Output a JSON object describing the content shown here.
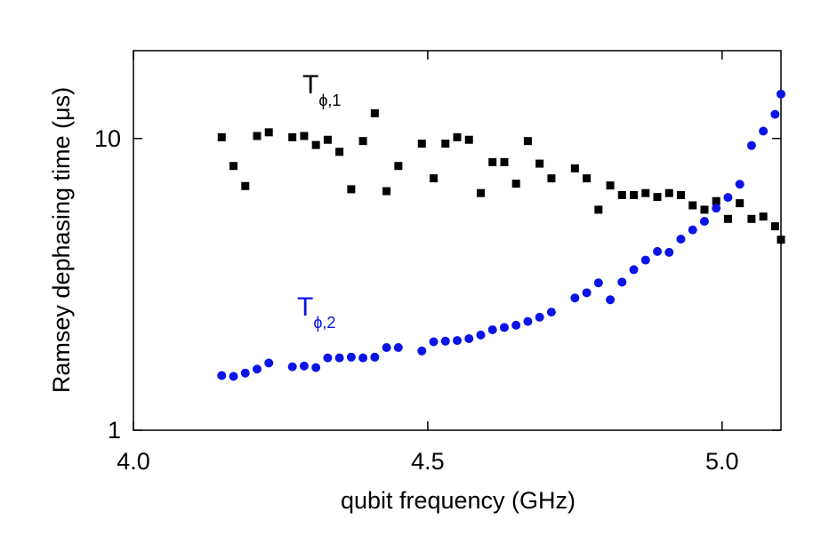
{
  "chart_data": {
    "type": "scatter",
    "x_label": "qubit frequency (GHz)",
    "y_label": "Ramsey dephasing time (μs)",
    "xlim": [
      4.0,
      5.1
    ],
    "ylim": [
      1,
      20
    ],
    "log_y": true,
    "xticks": [
      {
        "value": 4.0,
        "label": "4.0"
      },
      4.5,
      {
        "value": 5.0,
        "label": "5.0"
      }
    ],
    "yticks": [
      1,
      10
    ],
    "series": [
      {
        "color": "#000000",
        "marker": "square",
        "x": [
          4.15,
          4.17,
          4.19,
          4.21,
          4.23,
          4.27,
          4.29,
          4.31,
          4.33,
          4.35,
          4.37,
          4.39,
          4.41,
          4.43,
          4.45,
          4.49,
          4.51,
          4.53,
          4.55,
          4.57,
          4.59,
          4.61,
          4.63,
          4.65,
          4.67,
          4.69,
          4.71,
          4.75,
          4.77,
          4.79,
          4.81,
          4.83,
          4.85,
          4.87,
          4.89,
          4.91,
          4.93,
          4.95,
          4.97,
          4.99,
          5.01,
          5.03,
          5.05,
          5.07,
          5.09,
          5.1
        ],
        "values": [
          10.1,
          8.05,
          6.87,
          10.2,
          10.5,
          10.1,
          10.2,
          9.5,
          9.9,
          9.0,
          6.7,
          9.8,
          12.2,
          6.6,
          8.05,
          9.6,
          7.3,
          9.6,
          10.1,
          9.9,
          6.5,
          8.3,
          8.3,
          7.0,
          9.8,
          8.2,
          7.3,
          7.9,
          7.3,
          5.7,
          6.9,
          6.4,
          6.4,
          6.5,
          6.3,
          6.5,
          6.4,
          5.9,
          5.7,
          6.1,
          5.3,
          6.0,
          5.3,
          5.4,
          5.0,
          4.5
        ]
      },
      {
        "color": "#0a14e6",
        "marker": "circle",
        "x": [
          4.15,
          4.17,
          4.19,
          4.21,
          4.23,
          4.27,
          4.29,
          4.31,
          4.33,
          4.35,
          4.37,
          4.39,
          4.41,
          4.43,
          4.45,
          4.49,
          4.51,
          4.53,
          4.55,
          4.57,
          4.59,
          4.61,
          4.63,
          4.65,
          4.67,
          4.69,
          4.71,
          4.75,
          4.77,
          4.79,
          4.81,
          4.83,
          4.85,
          4.87,
          4.89,
          4.91,
          4.93,
          4.95,
          4.97,
          4.99,
          5.01,
          5.03,
          5.05,
          5.07,
          5.09,
          5.1
        ],
        "values": [
          1.54,
          1.53,
          1.57,
          1.62,
          1.7,
          1.65,
          1.66,
          1.64,
          1.77,
          1.77,
          1.78,
          1.77,
          1.78,
          1.92,
          1.92,
          1.87,
          2.01,
          2.02,
          2.03,
          2.06,
          2.12,
          2.21,
          2.25,
          2.29,
          2.36,
          2.44,
          2.54,
          2.84,
          2.96,
          3.2,
          2.8,
          3.22,
          3.55,
          3.83,
          4.1,
          4.07,
          4.52,
          4.86,
          5.2,
          5.77,
          6.28,
          6.97,
          9.46,
          10.6,
          12.1,
          14.2
        ]
      }
    ],
    "annotations": [
      {
        "text": "T",
        "subscript": "ϕ,1",
        "color": "#000000"
      },
      {
        "text": "T",
        "subscript": "ϕ,2",
        "color": "#0a14e6"
      }
    ]
  }
}
